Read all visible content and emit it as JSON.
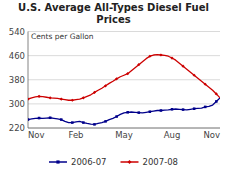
{
  "chart_data": {
    "type": "line",
    "title": "U.S. Average All-Types Diesel Fuel\nPrices",
    "y_label": "Cents per Gallon",
    "categories": [
      "Nov",
      null,
      null,
      null,
      null,
      null,
      null,
      null,
      null,
      null,
      null,
      null,
      null,
      "Feb",
      null,
      null,
      null,
      null,
      null,
      null,
      null,
      null,
      null,
      null,
      null,
      null,
      "May",
      null,
      null,
      null,
      null,
      null,
      null,
      null,
      null,
      null,
      null,
      null,
      null,
      "Aug",
      null,
      null,
      null,
      null,
      null,
      null,
      null,
      null,
      null,
      null,
      null,
      null,
      "Nov"
    ],
    "series": [
      {
        "name": "2006-07",
        "color": "#00008B",
        "marker": "square",
        "values": [
          248,
          250,
          252,
          253,
          252,
          253,
          254,
          252,
          250,
          248,
          242,
          238,
          238,
          240,
          242,
          238,
          235,
          233,
          232,
          235,
          238,
          242,
          248,
          252,
          258,
          265,
          270,
          272,
          273,
          272,
          271,
          270,
          272,
          274,
          276,
          278,
          278,
          279,
          280,
          282,
          283,
          282,
          281,
          280,
          282,
          284,
          285,
          286,
          290,
          292,
          296,
          308,
          320
        ]
      },
      {
        "name": "2007-08",
        "color": "#CC0000",
        "marker": "diamond",
        "values": [
          316,
          320,
          323,
          325,
          324,
          322,
          320,
          319,
          318,
          316,
          314,
          312,
          312,
          314,
          316,
          320,
          325,
          330,
          338,
          345,
          352,
          360,
          368,
          375,
          383,
          390,
          395,
          400,
          410,
          420,
          430,
          440,
          450,
          458,
          462,
          463,
          462,
          461,
          458,
          452,
          445,
          435,
          425,
          415,
          405,
          395,
          385,
          375,
          365,
          355,
          345,
          333,
          320
        ]
      }
    ],
    "ylim": [
      220,
      540
    ],
    "yticks": [
      220,
      300,
      380,
      460,
      540
    ],
    "grid": true,
    "legend": "bottom"
  }
}
